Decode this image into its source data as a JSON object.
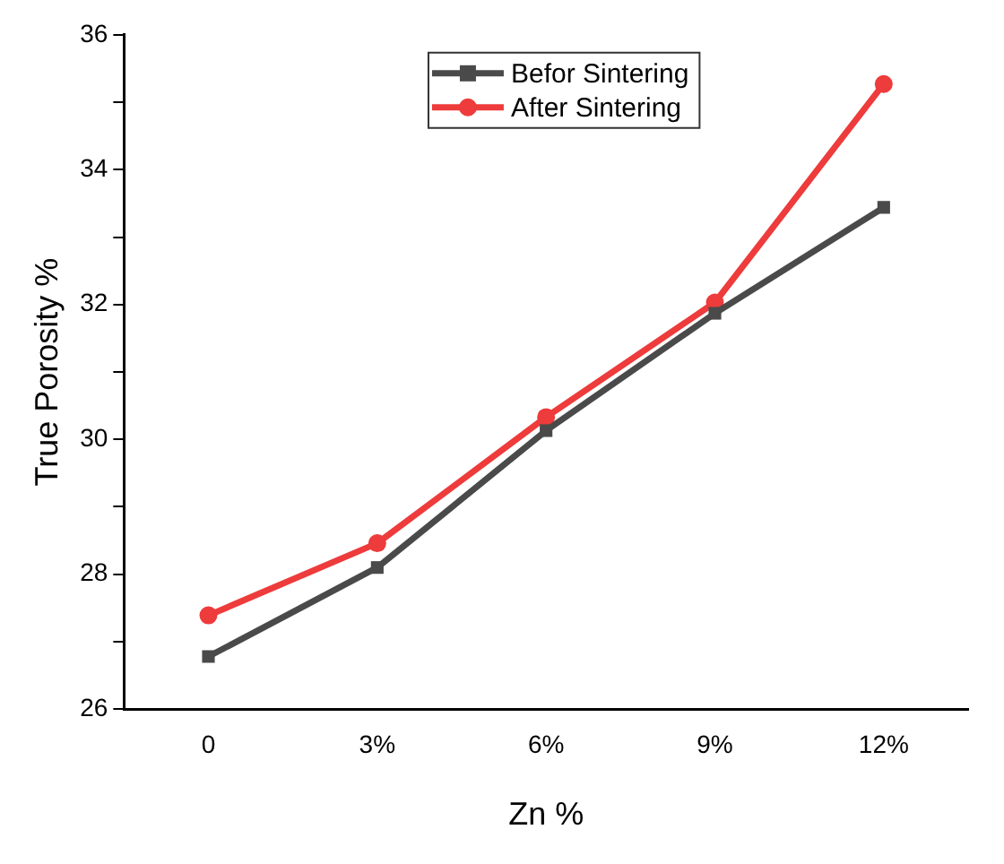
{
  "chart_data": {
    "type": "line",
    "xlabel": "Zn %",
    "ylabel": "True Porosity %",
    "categories": [
      "0",
      "3%",
      "6%",
      "9%",
      "12%"
    ],
    "series": [
      {
        "name": "Befor Sintering",
        "color": "#4a4a4a",
        "marker": "square",
        "values": [
          26.78,
          28.1,
          30.13,
          31.87,
          33.44
        ]
      },
      {
        "name": "After Sintering",
        "color": "#ee3b3b",
        "marker": "circle",
        "values": [
          27.39,
          28.46,
          30.33,
          32.03,
          35.27
        ]
      }
    ],
    "ylim": [
      26,
      36
    ],
    "yticks": [
      26,
      {
        "value": 27,
        "label": null
      },
      28,
      {
        "value": 29,
        "label": null
      },
      30,
      {
        "value": 31,
        "label": null
      },
      32,
      {
        "value": 33,
        "label": null
      },
      34,
      {
        "value": 35,
        "label": null
      },
      36
    ],
    "grid": false,
    "legend": "top",
    "line_style": "solid"
  }
}
